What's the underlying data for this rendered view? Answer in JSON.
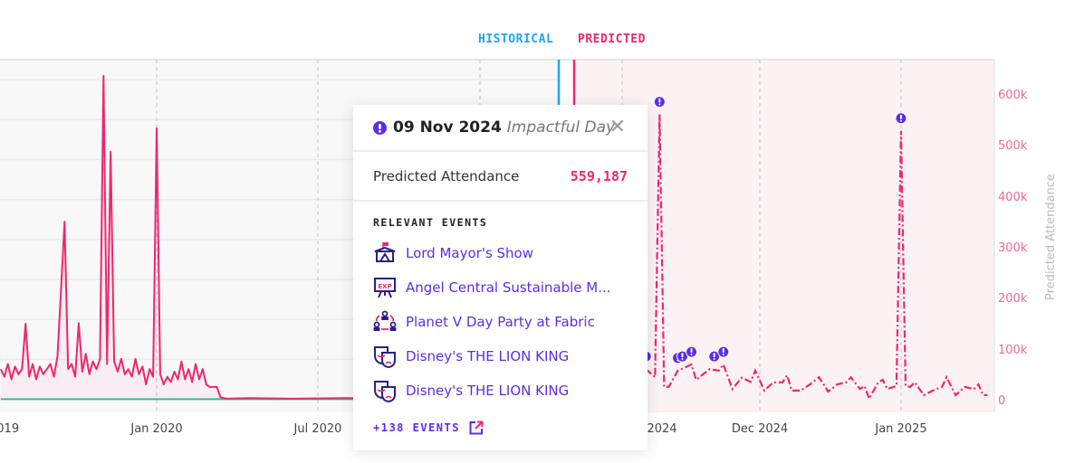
{
  "legend": {
    "historical": {
      "label": "HISTORICAL",
      "color": "#1ea7f0"
    },
    "predicted": {
      "label": "PREDICTED",
      "color": "#f0266f"
    }
  },
  "colors": {
    "line": "#f0266f",
    "baseline": "#3fb58f",
    "marker": "#5a2ee8",
    "predicted_bg": "#fbf2f4",
    "axis_text": "#f0679a"
  },
  "chart_data": {
    "type": "line",
    "y_axis_right": {
      "label": "Predicted Attendance",
      "ticks": [
        "0",
        "100k",
        "200k",
        "300k",
        "400k",
        "500k",
        "600k"
      ],
      "range_k": [
        0,
        620
      ]
    },
    "x_ticks": [
      "2019",
      "Jan 2020",
      "Jul 2020",
      "2024",
      "Dec 2024",
      "Jan 2025"
    ],
    "grid": true,
    "historical": {
      "line": [
        [
          "2019-07-09",
          60
        ],
        [
          "2019-07-13",
          45
        ],
        [
          "2019-07-17",
          70
        ],
        [
          "2019-07-21",
          40
        ],
        [
          "2019-07-25",
          65
        ],
        [
          "2019-07-29",
          50
        ],
        [
          "2019-08-02",
          60
        ],
        [
          "2019-08-06",
          149
        ],
        [
          "2019-08-10",
          45
        ],
        [
          "2019-08-14",
          70
        ],
        [
          "2019-08-18",
          40
        ],
        [
          "2019-08-22",
          65
        ],
        [
          "2019-08-26",
          50
        ],
        [
          "2019-08-30",
          60
        ],
        [
          "2019-09-03",
          70
        ],
        [
          "2019-09-07",
          45
        ],
        [
          "2019-09-11",
          85
        ],
        [
          "2019-09-15",
          215
        ],
        [
          "2019-09-19",
          349
        ],
        [
          "2019-09-23",
          60
        ],
        [
          "2019-09-27",
          70
        ],
        [
          "2019-10-01",
          45
        ],
        [
          "2019-10-05",
          150
        ],
        [
          "2019-10-09",
          55
        ],
        [
          "2019-10-13",
          90
        ],
        [
          "2019-10-17",
          50
        ],
        [
          "2019-10-21",
          75
        ],
        [
          "2019-10-25",
          60
        ],
        [
          "2019-10-29",
          80
        ],
        [
          "2019-11-02",
          635
        ],
        [
          "2019-11-06",
          70
        ],
        [
          "2019-11-10",
          486
        ],
        [
          "2019-11-14",
          75
        ],
        [
          "2019-11-18",
          55
        ],
        [
          "2019-11-22",
          80
        ],
        [
          "2019-11-26",
          50
        ],
        [
          "2019-11-30",
          60
        ],
        [
          "2019-12-04",
          45
        ],
        [
          "2019-12-08",
          80
        ],
        [
          "2019-12-12",
          50
        ],
        [
          "2019-12-16",
          65
        ],
        [
          "2019-12-20",
          30
        ],
        [
          "2019-12-24",
          60
        ],
        [
          "2019-12-28",
          45
        ],
        [
          "2020-01-01",
          532
        ],
        [
          "2020-01-05",
          50
        ],
        [
          "2020-01-09",
          30
        ],
        [
          "2020-01-13",
          45
        ],
        [
          "2020-01-17",
          35
        ],
        [
          "2020-01-21",
          55
        ],
        [
          "2020-01-25",
          40
        ],
        [
          "2020-01-29",
          75
        ],
        [
          "2020-02-02",
          40
        ],
        [
          "2020-02-06",
          60
        ],
        [
          "2020-02-10",
          35
        ],
        [
          "2020-02-14",
          70
        ],
        [
          "2020-02-18",
          40
        ],
        [
          "2020-02-22",
          60
        ],
        [
          "2020-02-26",
          30
        ],
        [
          "2020-03-01",
          25
        ],
        [
          "2020-03-05",
          25
        ],
        [
          "2020-03-09",
          25
        ],
        [
          "2020-03-13",
          5
        ],
        [
          "2020-03-17",
          3
        ],
        [
          "2020-03-21",
          2
        ],
        [
          "2020-04-15",
          3
        ],
        [
          "2020-06-01",
          2
        ],
        [
          "2020-08-01",
          3
        ],
        [
          "2020-10-01",
          2
        ],
        [
          "2020-12-01",
          3
        ],
        [
          "2021-02-01",
          2
        ],
        [
          "2021-03-28",
          2
        ]
      ],
      "baseline": [
        [
          "2019-07-09",
          1
        ],
        [
          "2021-03-28",
          1
        ]
      ]
    },
    "predicted": {
      "line": [
        [
          "2024-11-06",
          60
        ],
        [
          "2024-11-08",
          44
        ],
        [
          "2024-11-09",
          559.187
        ],
        [
          "2024-11-10",
          25
        ],
        [
          "2024-11-11",
          25
        ],
        [
          "2024-11-13",
          57
        ],
        [
          "2024-11-16",
          69
        ],
        [
          "2024-11-17",
          39
        ],
        [
          "2024-11-20",
          60
        ],
        [
          "2024-11-22",
          57
        ],
        [
          "2024-11-23",
          69
        ],
        [
          "2024-11-25",
          21
        ],
        [
          "2024-11-27",
          43
        ],
        [
          "2024-11-29",
          35
        ],
        [
          "2024-11-30",
          57
        ],
        [
          "2024-12-02",
          18
        ],
        [
          "2024-12-04",
          34
        ],
        [
          "2024-12-06",
          34
        ],
        [
          "2024-12-07",
          48
        ],
        [
          "2024-12-08",
          18
        ],
        [
          "2024-12-10",
          18
        ],
        [
          "2024-12-12",
          30
        ],
        [
          "2024-12-14",
          44
        ],
        [
          "2024-12-16",
          16
        ],
        [
          "2024-12-18",
          30
        ],
        [
          "2024-12-20",
          34
        ],
        [
          "2024-12-21",
          44
        ],
        [
          "2024-12-23",
          21
        ],
        [
          "2024-12-24",
          27
        ],
        [
          "2024-12-25",
          2
        ],
        [
          "2024-12-27",
          34
        ],
        [
          "2024-12-28",
          39
        ],
        [
          "2024-12-29",
          21
        ],
        [
          "2024-12-31",
          27
        ],
        [
          "2025-01-01",
          527
        ],
        [
          "2025-01-02",
          27
        ],
        [
          "2025-01-03",
          25
        ],
        [
          "2025-01-04",
          34
        ],
        [
          "2025-01-06",
          9
        ],
        [
          "2025-01-08",
          18
        ],
        [
          "2025-01-10",
          25
        ],
        [
          "2025-01-11",
          44
        ],
        [
          "2025-01-13",
          9
        ],
        [
          "2025-01-15",
          25
        ],
        [
          "2025-01-17",
          21
        ],
        [
          "2025-01-18",
          30
        ],
        [
          "2025-01-19",
          9
        ],
        [
          "2025-01-20",
          9
        ]
      ],
      "impactful_days": [
        "2024-11-06",
        "2024-11-09",
        "2024-11-13",
        "2024-11-14",
        "2024-11-16",
        "2024-11-21",
        "2024-11-23",
        "2025-01-01"
      ]
    }
  },
  "tooltip": {
    "date": "09 Nov 2024",
    "kind": "Impactful Day",
    "metric_label": "Predicted Attendance",
    "metric_value": "559,187",
    "section_title": "RELEVANT EVENTS",
    "events": [
      {
        "label": "Lord Mayor's Show",
        "icon": "parade-float-icon"
      },
      {
        "label": "Angel Central Sustainable M...",
        "icon": "expo-board-icon"
      },
      {
        "label": "Planet V Day Party at Fabric",
        "icon": "people-network-icon"
      },
      {
        "label": "Disney's THE LION KING",
        "icon": "theatre-masks-icon"
      },
      {
        "label": "Disney's THE LION KING",
        "icon": "theatre-masks-icon"
      }
    ],
    "more_label": "+138 EVENTS"
  }
}
